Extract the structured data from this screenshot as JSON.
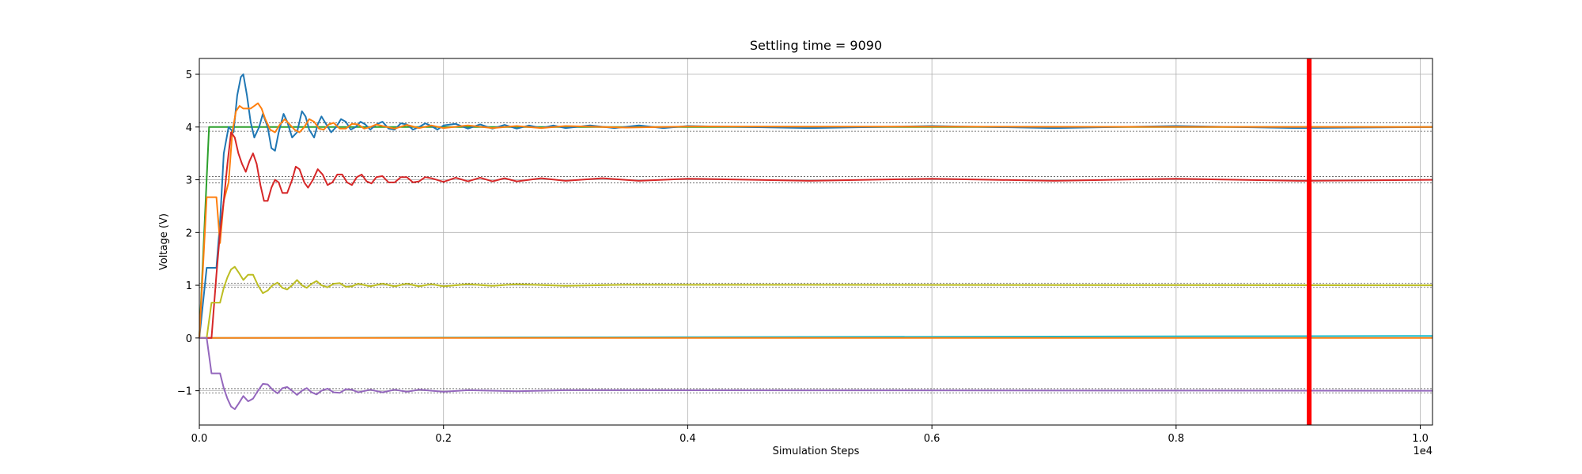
{
  "chart_data": {
    "type": "line",
    "title": "Settling time = 9090",
    "xlabel": "Simulation Steps",
    "ylabel": "Voltage (V)",
    "x_offset_text": "1e4",
    "xlim": [
      0,
      10100
    ],
    "ylim": [
      -1.65,
      5.3
    ],
    "grid": true,
    "x_ticks": [
      0,
      2000,
      4000,
      6000,
      8000,
      10000
    ],
    "x_tick_labels": [
      "0.0",
      "0.2",
      "0.4",
      "0.6",
      "0.8",
      "1.0"
    ],
    "y_ticks": [
      -1,
      0,
      1,
      2,
      3,
      4,
      5
    ],
    "y_tick_labels": [
      "−1",
      "0",
      "1",
      "2",
      "3",
      "4",
      "5"
    ],
    "settling_line": {
      "x": 9090,
      "color": "#ff0000"
    },
    "reference_bands": [
      {
        "center": 4,
        "halfwidth": 0.08
      },
      {
        "center": 3,
        "halfwidth": 0.06
      },
      {
        "center": 1,
        "halfwidth": 0.04
      },
      {
        "center": -1,
        "halfwidth": 0.04
      }
    ],
    "series": [
      {
        "color": "#2ca02c",
        "points": [
          [
            0,
            0
          ],
          [
            80,
            4
          ],
          [
            10100,
            4
          ]
        ]
      },
      {
        "color": "#17becf",
        "points": [
          [
            0,
            0
          ],
          [
            10100,
            0.04
          ]
        ]
      },
      {
        "color": "#ff7f0e",
        "points": [
          [
            0,
            0
          ],
          [
            10100,
            0
          ]
        ]
      },
      {
        "color": "#1f77b4",
        "points": [
          [
            0,
            0
          ],
          [
            60,
            1.33
          ],
          [
            100,
            1.33
          ],
          [
            140,
            1.33
          ],
          [
            170,
            2.2
          ],
          [
            200,
            3.5
          ],
          [
            240,
            4.0
          ],
          [
            280,
            3.9
          ],
          [
            310,
            4.6
          ],
          [
            340,
            4.95
          ],
          [
            360,
            5.0
          ],
          [
            390,
            4.6
          ],
          [
            420,
            4.1
          ],
          [
            450,
            3.8
          ],
          [
            490,
            4.0
          ],
          [
            520,
            4.25
          ],
          [
            560,
            4.0
          ],
          [
            590,
            3.6
          ],
          [
            620,
            3.55
          ],
          [
            650,
            3.9
          ],
          [
            690,
            4.25
          ],
          [
            720,
            4.1
          ],
          [
            760,
            3.8
          ],
          [
            800,
            3.9
          ],
          [
            840,
            4.3
          ],
          [
            870,
            4.2
          ],
          [
            900,
            3.95
          ],
          [
            940,
            3.8
          ],
          [
            970,
            4.05
          ],
          [
            1000,
            4.2
          ],
          [
            1040,
            4.05
          ],
          [
            1080,
            3.9
          ],
          [
            1120,
            4.0
          ],
          [
            1160,
            4.15
          ],
          [
            1200,
            4.1
          ],
          [
            1240,
            3.95
          ],
          [
            1280,
            4.0
          ],
          [
            1320,
            4.1
          ],
          [
            1360,
            4.05
          ],
          [
            1400,
            3.95
          ],
          [
            1450,
            4.05
          ],
          [
            1500,
            4.1
          ],
          [
            1550,
            3.97
          ],
          [
            1600,
            3.95
          ],
          [
            1650,
            4.07
          ],
          [
            1700,
            4.05
          ],
          [
            1750,
            3.95
          ],
          [
            1800,
            4.0
          ],
          [
            1850,
            4.07
          ],
          [
            1900,
            4.02
          ],
          [
            1950,
            3.95
          ],
          [
            2000,
            4.03
          ],
          [
            2100,
            4.06
          ],
          [
            2200,
            3.97
          ],
          [
            2300,
            4.05
          ],
          [
            2400,
            3.97
          ],
          [
            2500,
            4.04
          ],
          [
            2600,
            3.97
          ],
          [
            2700,
            4.03
          ],
          [
            2800,
            3.98
          ],
          [
            2900,
            4.03
          ],
          [
            3000,
            3.98
          ],
          [
            3200,
            4.03
          ],
          [
            3400,
            3.98
          ],
          [
            3600,
            4.03
          ],
          [
            3800,
            3.98
          ],
          [
            4000,
            4.02
          ],
          [
            5000,
            3.98
          ],
          [
            6000,
            4.02
          ],
          [
            7000,
            3.98
          ],
          [
            8000,
            4.02
          ],
          [
            9000,
            3.98
          ],
          [
            10100,
            4.0
          ]
        ]
      },
      {
        "color": "#ff7f0e",
        "points": [
          [
            0,
            0
          ],
          [
            60,
            2.67
          ],
          [
            100,
            2.67
          ],
          [
            140,
            2.67
          ],
          [
            170,
            1.8
          ],
          [
            200,
            2.6
          ],
          [
            240,
            2.95
          ],
          [
            270,
            3.9
          ],
          [
            300,
            4.3
          ],
          [
            330,
            4.4
          ],
          [
            360,
            4.35
          ],
          [
            390,
            4.35
          ],
          [
            420,
            4.35
          ],
          [
            450,
            4.4
          ],
          [
            480,
            4.45
          ],
          [
            510,
            4.35
          ],
          [
            540,
            4.15
          ],
          [
            580,
            3.95
          ],
          [
            620,
            3.9
          ],
          [
            660,
            4.05
          ],
          [
            700,
            4.15
          ],
          [
            740,
            4.05
          ],
          [
            780,
            3.95
          ],
          [
            820,
            3.9
          ],
          [
            860,
            4.0
          ],
          [
            900,
            4.15
          ],
          [
            940,
            4.1
          ],
          [
            980,
            3.97
          ],
          [
            1020,
            3.95
          ],
          [
            1060,
            4.05
          ],
          [
            1100,
            4.08
          ],
          [
            1150,
            3.97
          ],
          [
            1200,
            3.97
          ],
          [
            1250,
            4.06
          ],
          [
            1300,
            4.05
          ],
          [
            1350,
            3.97
          ],
          [
            1400,
            4.0
          ],
          [
            1450,
            4.05
          ],
          [
            1500,
            4.02
          ],
          [
            1600,
            3.97
          ],
          [
            1700,
            4.04
          ],
          [
            1800,
            3.98
          ],
          [
            1900,
            4.03
          ],
          [
            2000,
            3.98
          ],
          [
            2200,
            4.03
          ],
          [
            2400,
            3.98
          ],
          [
            2600,
            4.02
          ],
          [
            2800,
            3.98
          ],
          [
            3000,
            4.02
          ],
          [
            3500,
            3.99
          ],
          [
            4000,
            4.01
          ],
          [
            10100,
            4.0
          ]
        ]
      },
      {
        "color": "#d62728",
        "points": [
          [
            0,
            0
          ],
          [
            60,
            0
          ],
          [
            100,
            0
          ],
          [
            140,
            1.2
          ],
          [
            170,
            2.0
          ],
          [
            200,
            2.6
          ],
          [
            230,
            3.3
          ],
          [
            260,
            3.9
          ],
          [
            290,
            3.8
          ],
          [
            320,
            3.5
          ],
          [
            350,
            3.3
          ],
          [
            380,
            3.15
          ],
          [
            410,
            3.35
          ],
          [
            440,
            3.5
          ],
          [
            470,
            3.3
          ],
          [
            500,
            2.9
          ],
          [
            530,
            2.6
          ],
          [
            560,
            2.6
          ],
          [
            590,
            2.85
          ],
          [
            620,
            3.0
          ],
          [
            650,
            2.95
          ],
          [
            680,
            2.75
          ],
          [
            720,
            2.75
          ],
          [
            760,
            3.0
          ],
          [
            790,
            3.25
          ],
          [
            820,
            3.2
          ],
          [
            860,
            2.95
          ],
          [
            890,
            2.85
          ],
          [
            930,
            3.0
          ],
          [
            970,
            3.2
          ],
          [
            1010,
            3.1
          ],
          [
            1050,
            2.9
          ],
          [
            1090,
            2.95
          ],
          [
            1130,
            3.1
          ],
          [
            1170,
            3.1
          ],
          [
            1210,
            2.95
          ],
          [
            1250,
            2.9
          ],
          [
            1290,
            3.05
          ],
          [
            1330,
            3.1
          ],
          [
            1370,
            2.97
          ],
          [
            1410,
            2.93
          ],
          [
            1450,
            3.05
          ],
          [
            1500,
            3.07
          ],
          [
            1550,
            2.95
          ],
          [
            1600,
            2.95
          ],
          [
            1650,
            3.05
          ],
          [
            1700,
            3.05
          ],
          [
            1750,
            2.95
          ],
          [
            1800,
            2.97
          ],
          [
            1850,
            3.05
          ],
          [
            1900,
            3.03
          ],
          [
            2000,
            2.96
          ],
          [
            2100,
            3.04
          ],
          [
            2200,
            2.97
          ],
          [
            2300,
            3.04
          ],
          [
            2400,
            2.97
          ],
          [
            2500,
            3.03
          ],
          [
            2600,
            2.97
          ],
          [
            2800,
            3.03
          ],
          [
            3000,
            2.98
          ],
          [
            3300,
            3.03
          ],
          [
            3600,
            2.98
          ],
          [
            4000,
            3.02
          ],
          [
            5000,
            2.98
          ],
          [
            6000,
            3.02
          ],
          [
            7000,
            2.98
          ],
          [
            8000,
            3.02
          ],
          [
            9000,
            2.98
          ],
          [
            10100,
            3.0
          ]
        ]
      },
      {
        "color": "#bcbd22",
        "points": [
          [
            0,
            0
          ],
          [
            60,
            0
          ],
          [
            100,
            0.67
          ],
          [
            140,
            0.67
          ],
          [
            170,
            0.67
          ],
          [
            200,
            0.95
          ],
          [
            230,
            1.15
          ],
          [
            260,
            1.3
          ],
          [
            290,
            1.35
          ],
          [
            320,
            1.25
          ],
          [
            360,
            1.1
          ],
          [
            400,
            1.2
          ],
          [
            440,
            1.2
          ],
          [
            480,
            1.0
          ],
          [
            520,
            0.85
          ],
          [
            560,
            0.9
          ],
          [
            600,
            1.0
          ],
          [
            640,
            1.05
          ],
          [
            680,
            0.95
          ],
          [
            720,
            0.92
          ],
          [
            760,
            1.0
          ],
          [
            800,
            1.1
          ],
          [
            840,
            1.0
          ],
          [
            880,
            0.95
          ],
          [
            920,
            1.03
          ],
          [
            960,
            1.08
          ],
          [
            1000,
            1.0
          ],
          [
            1050,
            0.96
          ],
          [
            1100,
            1.03
          ],
          [
            1150,
            1.04
          ],
          [
            1200,
            0.97
          ],
          [
            1250,
            0.98
          ],
          [
            1300,
            1.03
          ],
          [
            1400,
            0.98
          ],
          [
            1500,
            1.03
          ],
          [
            1600,
            0.98
          ],
          [
            1700,
            1.03
          ],
          [
            1800,
            0.98
          ],
          [
            1900,
            1.02
          ],
          [
            2000,
            0.98
          ],
          [
            2200,
            1.02
          ],
          [
            2400,
            0.99
          ],
          [
            2600,
            1.02
          ],
          [
            3000,
            0.99
          ],
          [
            3500,
            1.01
          ],
          [
            10100,
            1.0
          ]
        ]
      },
      {
        "color": "#9467bd",
        "points": [
          [
            0,
            0
          ],
          [
            60,
            0
          ],
          [
            100,
            -0.67
          ],
          [
            140,
            -0.67
          ],
          [
            170,
            -0.67
          ],
          [
            200,
            -0.95
          ],
          [
            230,
            -1.15
          ],
          [
            260,
            -1.3
          ],
          [
            290,
            -1.35
          ],
          [
            320,
            -1.25
          ],
          [
            360,
            -1.1
          ],
          [
            400,
            -1.2
          ],
          [
            440,
            -1.15
          ],
          [
            480,
            -1.0
          ],
          [
            520,
            -0.87
          ],
          [
            560,
            -0.88
          ],
          [
            600,
            -0.98
          ],
          [
            640,
            -1.05
          ],
          [
            680,
            -0.95
          ],
          [
            720,
            -0.93
          ],
          [
            760,
            -1.0
          ],
          [
            800,
            -1.08
          ],
          [
            840,
            -1.0
          ],
          [
            880,
            -0.95
          ],
          [
            920,
            -1.03
          ],
          [
            960,
            -1.07
          ],
          [
            1000,
            -1.0
          ],
          [
            1050,
            -0.96
          ],
          [
            1100,
            -1.03
          ],
          [
            1150,
            -1.04
          ],
          [
            1200,
            -0.97
          ],
          [
            1250,
            -0.98
          ],
          [
            1300,
            -1.03
          ],
          [
            1400,
            -0.98
          ],
          [
            1500,
            -1.03
          ],
          [
            1600,
            -0.98
          ],
          [
            1700,
            -1.02
          ],
          [
            1800,
            -0.98
          ],
          [
            2000,
            -1.02
          ],
          [
            2200,
            -0.99
          ],
          [
            2600,
            -1.01
          ],
          [
            3000,
            -0.99
          ],
          [
            10100,
            -1.0
          ]
        ]
      }
    ]
  }
}
